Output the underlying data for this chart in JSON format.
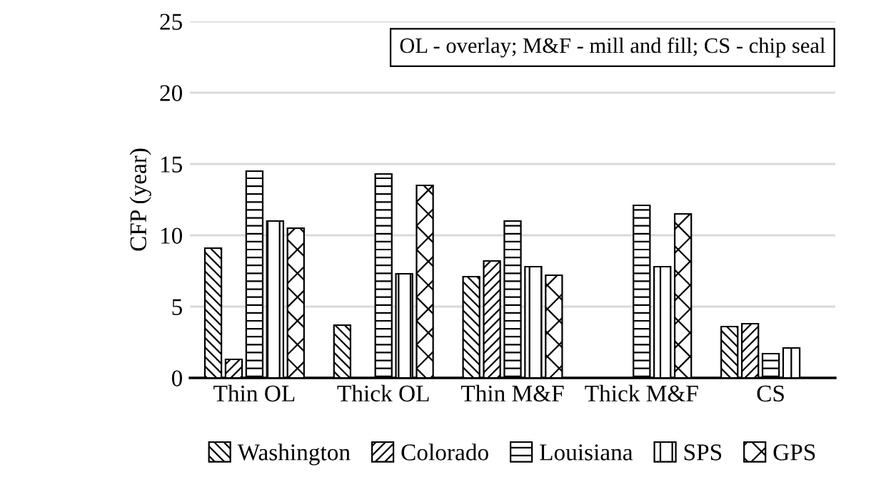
{
  "chart_data": {
    "type": "bar",
    "ylabel": "CFP (year)",
    "categories": [
      "Thin OL",
      "Thick OL",
      "Thin M&F",
      "Thick M&F",
      "CS"
    ],
    "series": [
      {
        "name": "Washington",
        "color": "#000000",
        "values": [
          9.1,
          3.7,
          7.1,
          null,
          3.6
        ]
      },
      {
        "name": "Colorado",
        "color": "#000000",
        "values": [
          1.3,
          null,
          8.2,
          null,
          3.8
        ]
      },
      {
        "name": "Louisiana",
        "color": "#000000",
        "values": [
          14.5,
          14.3,
          11.0,
          12.1,
          1.7
        ]
      },
      {
        "name": "SPS",
        "color": "#000000",
        "values": [
          11.0,
          7.3,
          7.8,
          7.8,
          2.1
        ]
      },
      {
        "name": "GPS",
        "color": "#000000",
        "values": [
          10.5,
          13.5,
          7.2,
          11.5,
          null
        ]
      }
    ],
    "ylim": [
      0,
      25
    ],
    "yticks": [
      0,
      5,
      10,
      15,
      20,
      25
    ],
    "grid": "y",
    "legend": "bottom",
    "annotations": [
      "OL - overlay; M&F - mill and fill; CS - chip seal"
    ]
  }
}
